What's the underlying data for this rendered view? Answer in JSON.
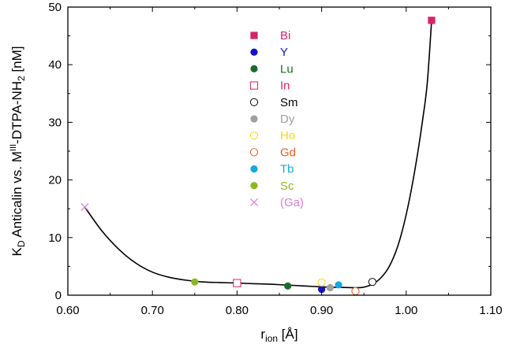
{
  "chart_data": {
    "type": "scatter",
    "xlim": [
      0.6,
      1.1
    ],
    "ylim": [
      0,
      50
    ],
    "x_ticks": [
      "0.60",
      "0.70",
      "0.80",
      "0.90",
      "1.00",
      "1.10"
    ],
    "y_ticks": [
      "0",
      "10",
      "20",
      "30",
      "40",
      "50"
    ],
    "xlabel": {
      "main": "r",
      "sub": "ion",
      "rest": " [Å]"
    },
    "ylabel": {
      "k": "K",
      "k_sub": "D",
      "mid": " Anticalin vs. M",
      "sup": "III",
      "tail": "-DTPA-NH",
      "tail_sub": "2",
      "unit": " [nM]"
    },
    "legend_position": "upper-center",
    "grid": false,
    "series": [
      {
        "name": "Bi",
        "marker": "square-filled",
        "color": "#d6246b",
        "points": [
          [
            1.03,
            47.7
          ]
        ]
      },
      {
        "name": "Y",
        "marker": "circle-filled",
        "color": "#1515c0",
        "points": [
          [
            0.9,
            1.0
          ]
        ]
      },
      {
        "name": "Lu",
        "marker": "circle-filled",
        "color": "#1b6b2b",
        "points": [
          [
            0.86,
            1.6
          ]
        ]
      },
      {
        "name": "In",
        "marker": "square-open",
        "color": "#d6246b",
        "points": [
          [
            0.8,
            2.1
          ]
        ]
      },
      {
        "name": "Sm",
        "marker": "circle-open",
        "color": "#000000",
        "points": [
          [
            0.96,
            2.3
          ]
        ]
      },
      {
        "name": "Dy",
        "marker": "circle-filled",
        "color": "#a0a0a0",
        "points": [
          [
            0.91,
            1.3
          ]
        ]
      },
      {
        "name": "Ho",
        "marker": "circle-open",
        "color": "#ffd21a",
        "points": [
          [
            0.9,
            2.2
          ]
        ]
      },
      {
        "name": "Gd",
        "marker": "circle-open",
        "color": "#ef5a1f",
        "points": [
          [
            0.94,
            0.7
          ]
        ]
      },
      {
        "name": "Tb",
        "marker": "circle-filled",
        "color": "#17a8e0",
        "points": [
          [
            0.92,
            1.8
          ]
        ]
      },
      {
        "name": "Sc",
        "marker": "circle-filled",
        "color": "#8ab820",
        "points": [
          [
            0.75,
            2.3
          ]
        ]
      },
      {
        "name": "(Ga)",
        "marker": "cross",
        "color": "#e07ad8",
        "points": [
          [
            0.62,
            15.3
          ]
        ]
      }
    ],
    "fit_curve": [
      [
        0.62,
        15.3
      ],
      [
        0.64,
        11.2
      ],
      [
        0.66,
        8.0
      ],
      [
        0.68,
        5.6
      ],
      [
        0.7,
        4.0
      ],
      [
        0.72,
        3.1
      ],
      [
        0.74,
        2.6
      ],
      [
        0.76,
        2.3
      ],
      [
        0.78,
        2.2
      ],
      [
        0.8,
        2.1
      ],
      [
        0.82,
        2.0
      ],
      [
        0.84,
        1.9
      ],
      [
        0.86,
        1.75
      ],
      [
        0.88,
        1.6
      ],
      [
        0.9,
        1.45
      ],
      [
        0.92,
        1.35
      ],
      [
        0.94,
        1.3
      ],
      [
        0.95,
        1.4
      ],
      [
        0.96,
        1.9
      ],
      [
        0.97,
        3.0
      ],
      [
        0.98,
        5.0
      ],
      [
        0.99,
        8.5
      ],
      [
        1.0,
        14.0
      ],
      [
        1.01,
        21.5
      ],
      [
        1.02,
        31.0
      ],
      [
        1.025,
        37.0
      ],
      [
        1.03,
        47.7
      ]
    ]
  }
}
